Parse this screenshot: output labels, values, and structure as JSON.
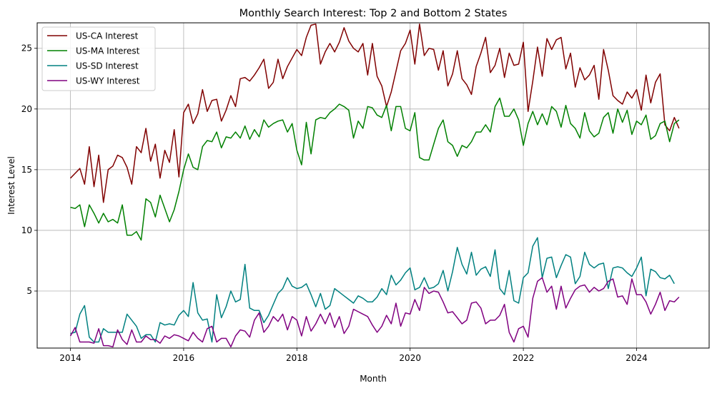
{
  "chart_data": {
    "type": "line",
    "title": "Monthly Search Interest: Top 2 and Bottom 2 States",
    "xlabel": "Month",
    "ylabel": "Interest Level",
    "x_start": "2014-01",
    "x_end": "2024-09",
    "x_ticks": [
      "2014",
      "2016",
      "2018",
      "2020",
      "2022",
      "2024"
    ],
    "y_ticks": [
      "5",
      "10",
      "15",
      "20",
      "25"
    ],
    "ylim": [
      0.3,
      27.1
    ],
    "grid": true,
    "legend_position": "top-left",
    "series": [
      {
        "name": "US-CA Interest",
        "color": "#800000",
        "values": [
          14.3,
          14.7,
          15.1,
          13.8,
          16.9,
          13.6,
          16.2,
          12.3,
          15.0,
          15.3,
          16.2,
          16.0,
          15.2,
          13.8,
          16.9,
          16.4,
          18.4,
          15.7,
          17.1,
          14.3,
          16.6,
          15.6,
          18.3,
          14.4,
          19.7,
          20.4,
          18.8,
          19.6,
          21.6,
          19.8,
          20.7,
          20.8,
          19.0,
          19.9,
          21.1,
          20.2,
          22.5,
          22.6,
          22.3,
          22.8,
          23.4,
          24.1,
          21.7,
          22.2,
          24.1,
          22.5,
          23.5,
          24.2,
          24.9,
          24.4,
          25.9,
          26.9,
          27.0,
          23.7,
          24.7,
          25.4,
          24.7,
          25.5,
          26.7,
          25.6,
          25.0,
          24.7,
          25.4,
          22.8,
          25.4,
          22.7,
          21.9,
          20.2,
          21.4,
          23.1,
          24.8,
          25.4,
          26.5,
          23.7,
          27.0,
          24.4,
          25.0,
          24.9,
          23.2,
          24.8,
          21.9,
          22.9,
          24.8,
          22.5,
          22.0,
          21.2,
          23.5,
          24.6,
          25.9,
          23.0,
          23.6,
          25.0,
          22.6,
          24.6,
          23.6,
          23.7,
          25.5,
          19.8,
          22.3,
          25.1,
          22.7,
          25.8,
          24.9,
          25.7,
          25.9,
          23.3,
          24.6,
          21.8,
          23.4,
          22.4,
          22.8,
          23.6,
          20.8,
          24.9,
          23.2,
          21.1,
          20.7,
          20.4,
          21.4,
          20.9,
          21.6,
          19.9,
          22.8,
          20.5,
          22.2,
          22.9,
          18.7,
          18.2,
          19.3,
          18.4
        ]
      },
      {
        "name": "US-MA Interest",
        "color": "#008000",
        "values": [
          11.9,
          11.8,
          12.1,
          10.3,
          12.1,
          11.4,
          10.6,
          11.4,
          10.7,
          10.9,
          10.6,
          12.1,
          9.6,
          9.6,
          9.9,
          9.2,
          12.6,
          12.3,
          11.1,
          12.9,
          11.8,
          10.7,
          11.7,
          13.2,
          15.0,
          16.3,
          15.2,
          15.0,
          16.9,
          17.4,
          17.3,
          18.1,
          16.8,
          17.7,
          17.6,
          18.1,
          17.6,
          18.6,
          17.5,
          18.3,
          17.7,
          19.1,
          18.5,
          18.8,
          19.0,
          19.1,
          18.1,
          18.8,
          16.6,
          15.4,
          18.9,
          16.3,
          19.1,
          19.3,
          19.2,
          19.7,
          20.0,
          20.4,
          20.2,
          19.9,
          17.6,
          19.0,
          18.4,
          20.2,
          20.1,
          19.5,
          19.3,
          20.3,
          18.2,
          20.2,
          20.2,
          18.4,
          18.2,
          19.7,
          16.0,
          15.8,
          15.8,
          17.1,
          18.4,
          19.1,
          17.3,
          17.0,
          16.1,
          17.0,
          16.8,
          17.3,
          18.1,
          18.1,
          18.7,
          18.1,
          20.2,
          20.9,
          19.4,
          19.4,
          20.0,
          19.1,
          17.0,
          18.8,
          19.8,
          18.7,
          19.6,
          18.7,
          20.2,
          19.8,
          18.5,
          20.3,
          18.8,
          18.4,
          17.6,
          19.7,
          18.2,
          17.7,
          18.0,
          19.3,
          19.7,
          18.0,
          20.0,
          18.9,
          19.9,
          17.9,
          19.0,
          18.7,
          19.5,
          17.5,
          17.8,
          18.8,
          19.0,
          17.3,
          18.8,
          19.1
        ]
      },
      {
        "name": "US-SD Interest",
        "color": "#008080",
        "values": [
          1.5,
          1.6,
          3.1,
          3.8,
          1.2,
          0.8,
          0.8,
          1.9,
          1.6,
          1.6,
          1.6,
          1.6,
          3.1,
          2.6,
          2.1,
          1.1,
          1.4,
          1.4,
          0.8,
          2.4,
          2.2,
          2.3,
          2.2,
          3.0,
          3.4,
          2.9,
          5.7,
          3.2,
          2.6,
          2.7,
          0.8,
          4.7,
          2.8,
          3.7,
          5.0,
          4.1,
          4.3,
          7.2,
          3.6,
          3.4,
          3.4,
          2.4,
          3.0,
          3.9,
          4.8,
          5.2,
          6.1,
          5.4,
          5.2,
          5.3,
          5.6,
          4.7,
          3.7,
          4.8,
          3.5,
          3.8,
          5.2,
          4.9,
          4.6,
          4.3,
          4.0,
          4.6,
          4.4,
          4.1,
          4.1,
          4.5,
          5.2,
          4.7,
          6.3,
          5.5,
          5.9,
          6.5,
          6.9,
          5.1,
          5.3,
          6.1,
          5.2,
          5.3,
          5.6,
          6.7,
          5.0,
          6.6,
          8.6,
          7.2,
          6.4,
          8.2,
          6.3,
          6.8,
          7.0,
          6.2,
          8.4,
          5.2,
          4.7,
          6.7,
          4.2,
          4.0,
          6.1,
          6.5,
          8.7,
          9.4,
          6.1,
          7.7,
          7.8,
          6.1,
          7.1,
          8.0,
          7.8,
          5.6,
          6.2,
          8.2,
          7.2,
          6.9,
          7.2,
          7.3,
          5.2,
          6.9,
          7.0,
          6.9,
          6.5,
          6.2,
          6.9,
          7.8,
          4.6,
          6.8,
          6.6,
          6.1,
          6.0,
          6.3,
          5.6
        ]
      },
      {
        "name": "US-WY Interest",
        "color": "#800080",
        "values": [
          1.3,
          2.0,
          0.8,
          0.8,
          0.8,
          0.7,
          1.9,
          0.5,
          0.5,
          0.4,
          1.8,
          1.0,
          0.6,
          1.8,
          0.8,
          0.8,
          1.3,
          1.0,
          1.0,
          0.7,
          1.3,
          1.1,
          1.4,
          1.3,
          1.1,
          0.9,
          1.6,
          1.1,
          0.8,
          1.9,
          2.1,
          0.8,
          1.1,
          1.1,
          0.4,
          1.3,
          1.8,
          1.7,
          1.2,
          2.6,
          3.2,
          1.6,
          2.1,
          2.9,
          2.5,
          3.1,
          1.8,
          2.9,
          2.6,
          1.3,
          2.9,
          1.7,
          2.3,
          3.1,
          2.3,
          3.2,
          2.0,
          2.9,
          1.5,
          2.1,
          3.5,
          3.3,
          3.1,
          2.9,
          2.2,
          1.6,
          2.1,
          3.0,
          2.3,
          4.0,
          2.1,
          3.2,
          3.1,
          4.3,
          3.4,
          5.3,
          4.8,
          5.0,
          4.9,
          4.1,
          3.2,
          3.3,
          2.8,
          2.3,
          2.6,
          4.0,
          4.1,
          3.6,
          2.3,
          2.6,
          2.6,
          3.0,
          3.9,
          1.6,
          0.8,
          1.9,
          2.1,
          1.2,
          4.4,
          5.8,
          6.1,
          4.9,
          5.4,
          3.5,
          5.4,
          3.6,
          4.4,
          5.1,
          5.4,
          5.5,
          4.9,
          5.3,
          5.0,
          5.2,
          5.8,
          6.0,
          4.5,
          4.6,
          3.9,
          6.0,
          4.7,
          4.7,
          4.1,
          3.1,
          3.9,
          4.9,
          3.4,
          4.2,
          4.1,
          4.5
        ]
      }
    ]
  }
}
